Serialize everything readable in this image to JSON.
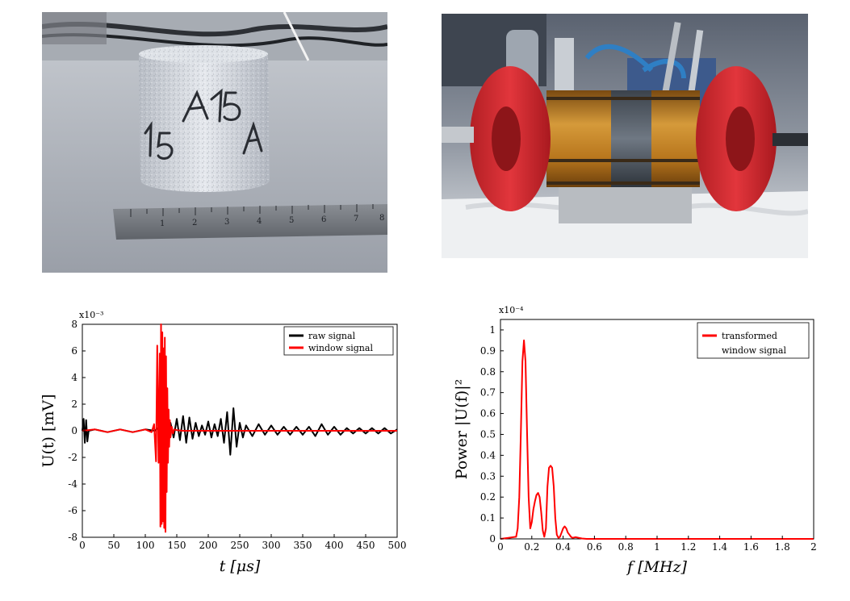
{
  "photos": [
    {
      "kind": "photo",
      "ruler_digits": [
        "1",
        "2",
        "3",
        "4",
        "5",
        "6",
        "7",
        "8"
      ],
      "sample_marking": "A15"
    },
    {
      "kind": "photo"
    }
  ],
  "chart_data": [
    {
      "type": "line",
      "xlabel": "t [μs]",
      "ylabel": "U(t) [mV]",
      "y_exponent": "x10⁻³",
      "xlim": [
        0,
        500
      ],
      "ylim": [
        -8,
        8
      ],
      "xticks": [
        "0",
        "50",
        "100",
        "150",
        "200",
        "250",
        "300",
        "350",
        "400",
        "450",
        "500"
      ],
      "yticks": [
        "8",
        "6",
        "4",
        "2",
        "0",
        "-2",
        "-4",
        "-6",
        "-8"
      ],
      "legend_position": "top-right",
      "series": [
        {
          "name": "raw signal",
          "color": "#000000",
          "x": [
            0,
            2,
            4,
            6,
            8,
            10,
            20,
            40,
            60,
            80,
            100,
            115,
            120,
            125,
            130,
            135,
            140,
            145,
            150,
            155,
            160,
            165,
            170,
            175,
            180,
            185,
            190,
            195,
            200,
            205,
            210,
            215,
            220,
            225,
            230,
            235,
            240,
            245,
            250,
            255,
            260,
            270,
            280,
            290,
            300,
            310,
            320,
            330,
            340,
            350,
            360,
            370,
            380,
            390,
            400,
            410,
            420,
            430,
            440,
            450,
            460,
            470,
            480,
            490,
            500
          ],
          "y": [
            0,
            0.9,
            -0.9,
            0.8,
            -0.8,
            0,
            0.1,
            -0.1,
            0.1,
            -0.1,
            0.1,
            0,
            0.2,
            -0.2,
            0.3,
            -0.3,
            0.6,
            -0.5,
            0.9,
            -0.7,
            1.1,
            -0.9,
            1.0,
            -0.6,
            0.6,
            -0.4,
            0.4,
            -0.3,
            0.7,
            -0.5,
            0.5,
            -0.4,
            0.9,
            -0.9,
            1.4,
            -1.8,
            1.7,
            -1.2,
            0.6,
            -0.5,
            0.4,
            -0.4,
            0.5,
            -0.3,
            0.4,
            -0.3,
            0.3,
            -0.3,
            0.3,
            -0.3,
            0.3,
            -0.4,
            0.5,
            -0.3,
            0.3,
            -0.3,
            0.2,
            -0.2,
            0.2,
            -0.2,
            0.2,
            -0.2,
            0.2,
            -0.2,
            0.1
          ]
        },
        {
          "name": "window signal",
          "color": "#ff0000",
          "x": [
            0,
            20,
            40,
            60,
            80,
            100,
            110,
            114,
            117,
            119,
            121,
            123,
            124,
            125,
            126,
            127,
            128,
            129,
            130,
            131,
            132,
            133,
            134,
            135,
            136,
            137,
            138,
            139,
            140,
            142,
            144,
            146,
            150,
            160,
            200,
            250,
            300,
            350,
            400,
            450,
            500
          ],
          "y": [
            0,
            0.1,
            -0.1,
            0.1,
            -0.1,
            0.1,
            -0.1,
            0.5,
            -2.3,
            6.4,
            -2.4,
            5.8,
            -7.2,
            8.0,
            -7.0,
            7.4,
            -6.8,
            6.2,
            -7.3,
            7.0,
            -7.6,
            5.6,
            -4.6,
            3.2,
            -2.4,
            1.6,
            -1.2,
            0.8,
            -0.5,
            0.3,
            -0.2,
            0.1,
            0.05,
            0,
            0,
            0,
            0,
            0,
            0,
            0,
            0
          ]
        }
      ]
    },
    {
      "type": "line",
      "xlabel": "f [MHz]",
      "ylabel": "Power |U(f)|²",
      "y_exponent": "x10⁻⁴",
      "xlim": [
        0,
        2
      ],
      "ylim": [
        0,
        1.05
      ],
      "xticks": [
        "0",
        "0.2",
        "0.4",
        "0.6",
        "0.8",
        "1",
        "1.2",
        "1.4",
        "1.6",
        "1.8",
        "2"
      ],
      "yticks": [
        "1",
        "0.9",
        "0.8",
        "0.7",
        "0.6",
        "0.5",
        "0.4",
        "0.3",
        "0.2",
        "0.1",
        "0"
      ],
      "legend_position": "top-right",
      "series": [
        {
          "name": "transformed window signal",
          "color": "#ff0000",
          "x": [
            0,
            0.05,
            0.08,
            0.1,
            0.11,
            0.12,
            0.13,
            0.14,
            0.15,
            0.16,
            0.17,
            0.18,
            0.19,
            0.2,
            0.21,
            0.22,
            0.23,
            0.24,
            0.25,
            0.26,
            0.27,
            0.28,
            0.29,
            0.3,
            0.31,
            0.32,
            0.33,
            0.34,
            0.35,
            0.36,
            0.37,
            0.38,
            0.39,
            0.4,
            0.41,
            0.42,
            0.43,
            0.44,
            0.45,
            0.46,
            0.48,
            0.5,
            0.52,
            0.55,
            0.6,
            0.7,
            2.0
          ],
          "y": [
            0,
            0.005,
            0.008,
            0.01,
            0.05,
            0.2,
            0.5,
            0.85,
            0.95,
            0.85,
            0.5,
            0.2,
            0.05,
            0.08,
            0.14,
            0.18,
            0.21,
            0.22,
            0.2,
            0.13,
            0.04,
            0.01,
            0.05,
            0.25,
            0.34,
            0.35,
            0.34,
            0.25,
            0.1,
            0.02,
            0.005,
            0.01,
            0.03,
            0.05,
            0.06,
            0.05,
            0.03,
            0.02,
            0.01,
            0.005,
            0.008,
            0.005,
            0.002,
            0,
            0,
            0,
            0
          ]
        }
      ]
    }
  ]
}
